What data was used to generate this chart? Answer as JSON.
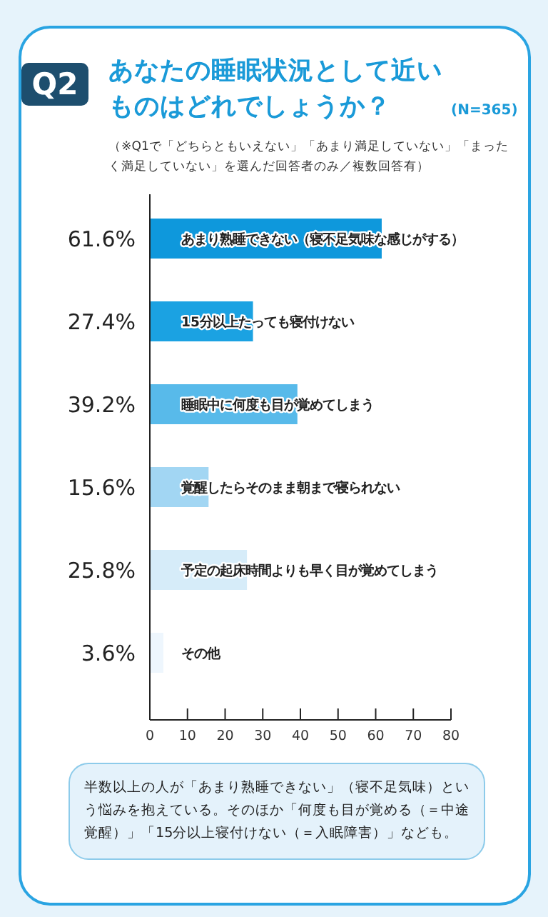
{
  "chart_data": {
    "type": "bar",
    "orientation": "horizontal",
    "title": "あなたの睡眠状況として近いものはどれでしょうか？",
    "subtitle": "（※Q1で「どちらともいえない」「あまり満足していない」「まったく満足していない」を選んだ回答者のみ／複数回答有）",
    "annotations": [
      "Q2",
      "(N=365)",
      "半数以上の人が「あまり熟睡できない」（寝不足気味）という悩みを抱えている。そのほか「何度も目が覚める（＝中途覚醒）」「15分以上寝付けない（＝入眠障害）」なども。"
    ],
    "categories": [
      "あまり熟睡できない（寝不足気味な感じがする）",
      "15分以上たっても寝付けない",
      "睡眠中に何度も目が覚めてしまう",
      "覚醒したらそのまま朝まで寝られない",
      "予定の起床時間よりも早く目が覚めてしまう",
      "その他"
    ],
    "values": [
      61.6,
      27.4,
      39.2,
      15.6,
      25.8,
      3.6
    ],
    "value_labels": [
      "61.6%",
      "27.4%",
      "39.2%",
      "15.6%",
      "25.8%",
      "3.6%"
    ],
    "colors": [
      "#0e98dc",
      "#1ba2e2",
      "#58baea",
      "#a2d6f3",
      "#d6ecf9",
      "#eef6fd"
    ],
    "xlim": [
      0,
      80
    ],
    "xticks": [
      0,
      10,
      20,
      30,
      40,
      50,
      60,
      70,
      80
    ],
    "grid": false
  }
}
